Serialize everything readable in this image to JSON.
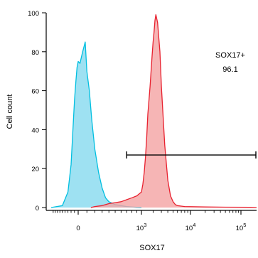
{
  "chart_data": {
    "type": "area",
    "xlabel": "SOX17",
    "ylabel": "Cell count",
    "ylim": [
      0,
      105
    ],
    "x_scale": "biexponential",
    "yticks": [
      0,
      20,
      40,
      60,
      80,
      100
    ],
    "xticks": [
      {
        "label": "0",
        "sup": ""
      },
      {
        "label": "10",
        "sup": "3"
      },
      {
        "label": "10",
        "sup": "4"
      },
      {
        "label": "10",
        "sup": "5"
      }
    ],
    "gate": {
      "name": "SOX17+",
      "value": "96.1",
      "range": [
        700,
        220000
      ],
      "y": 27
    },
    "series": [
      {
        "fill": "#8ddcf0",
        "stroke": "#00bfe0",
        "x": [
          -1000,
          -500,
          -300,
          -200,
          -150,
          -100,
          -60,
          -30,
          0,
          20,
          50,
          80,
          100,
          130,
          160,
          200,
          250,
          300,
          350,
          400,
          500,
          600,
          700,
          800,
          900,
          1000
        ],
        "y": [
          0,
          1,
          8,
          22,
          38,
          55,
          65,
          72,
          75,
          74,
          80,
          85,
          70,
          60,
          45,
          30,
          18,
          10,
          5,
          3,
          1.5,
          1,
          0.5,
          0.3,
          0.1,
          0
        ]
      },
      {
        "fill": "#f4a3a3",
        "stroke": "#e8212f",
        "x": [
          150,
          200,
          300,
          400,
          500,
          600,
          700,
          800,
          900,
          1000,
          1100,
          1200,
          1300,
          1400,
          1500,
          1700,
          1900,
          2000,
          2100,
          2200,
          2300,
          2500,
          2800,
          3000,
          3500,
          4000,
          4500,
          5000,
          5500,
          6000,
          8000,
          20000,
          50000,
          150000,
          220000
        ],
        "y": [
          0,
          0.5,
          1,
          2,
          2.5,
          3,
          4,
          5,
          6,
          8,
          12,
          18,
          26,
          36,
          48,
          62,
          78,
          85,
          90,
          96,
          99,
          95,
          80,
          62,
          32,
          14,
          6,
          3,
          1.5,
          1,
          0.5,
          0.3,
          0.2,
          0.1,
          0
        ]
      }
    ]
  }
}
